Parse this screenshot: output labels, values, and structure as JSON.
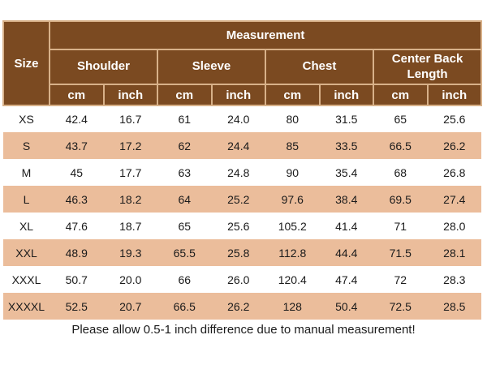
{
  "theme": {
    "header_bg": "#7B4A21",
    "row_shaded_bg": "#EBBD9B",
    "row_plain_bg": "#FFFFFF",
    "header_text": "#FFFFFF",
    "body_text": "#1B1B1B",
    "grid_line": "#D8B189",
    "page_bg": "#FFFFFF"
  },
  "chart_data": {
    "type": "table",
    "title": "Measurement",
    "corner_label": "Size",
    "column_groups": [
      "Shoulder",
      "Sleeve",
      "Chest",
      "Center Back Length"
    ],
    "unit_columns": [
      "cm",
      "inch"
    ],
    "rows": [
      {
        "size": "XS",
        "values": [
          "42.4",
          "16.7",
          "61",
          "24.0",
          "80",
          "31.5",
          "65",
          "25.6"
        ]
      },
      {
        "size": "S",
        "values": [
          "43.7",
          "17.2",
          "62",
          "24.4",
          "85",
          "33.5",
          "66.5",
          "26.2"
        ]
      },
      {
        "size": "M",
        "values": [
          "45",
          "17.7",
          "63",
          "24.8",
          "90",
          "35.4",
          "68",
          "26.8"
        ]
      },
      {
        "size": "L",
        "values": [
          "46.3",
          "18.2",
          "64",
          "25.2",
          "97.6",
          "38.4",
          "69.5",
          "27.4"
        ]
      },
      {
        "size": "XL",
        "values": [
          "47.6",
          "18.7",
          "65",
          "25.6",
          "105.2",
          "41.4",
          "71",
          "28.0"
        ]
      },
      {
        "size": "XXL",
        "values": [
          "48.9",
          "19.3",
          "65.5",
          "25.8",
          "112.8",
          "44.4",
          "71.5",
          "28.1"
        ]
      },
      {
        "size": "XXXL",
        "values": [
          "50.7",
          "20.0",
          "66",
          "26.0",
          "120.4",
          "47.4",
          "72",
          "28.3"
        ]
      },
      {
        "size": "XXXXL",
        "values": [
          "52.5",
          "20.7",
          "66.5",
          "26.2",
          "128",
          "50.4",
          "72.5",
          "28.5"
        ]
      }
    ],
    "footnote": "Please allow 0.5-1 inch difference due to manual measurement!"
  }
}
